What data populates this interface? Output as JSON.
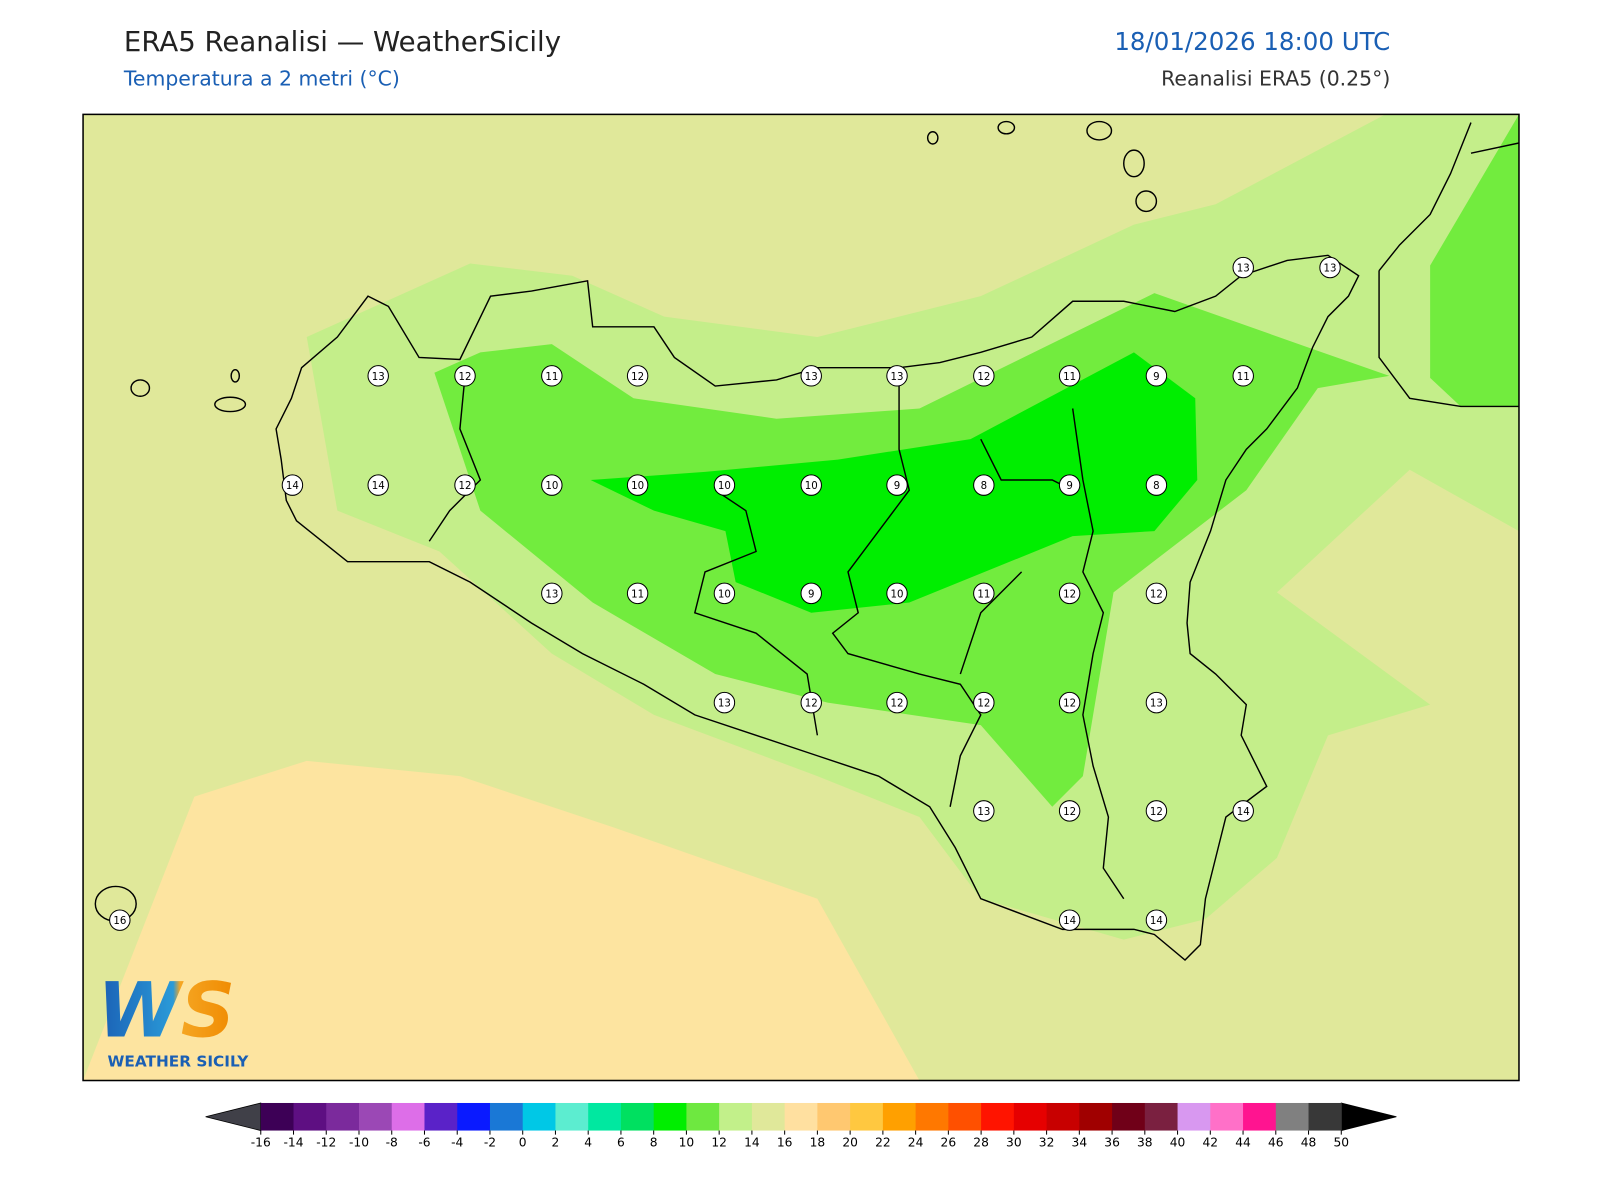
{
  "header": {
    "title": "ERA5 Reanalisi — WeatherSicily",
    "subtitle": "Temperatura a 2 metri (°C)",
    "datetime": "18/01/2026 18:00 UTC",
    "source": "Reanalisi ERA5 (0.25°)"
  },
  "station_values": [
    13,
    13,
    13,
    12,
    11,
    12,
    13,
    13,
    12,
    11,
    9,
    11,
    14,
    14,
    12,
    10,
    10,
    10,
    10,
    9,
    8,
    9,
    8,
    13,
    11,
    10,
    9,
    10,
    11,
    12,
    12,
    13,
    12,
    12,
    12,
    12,
    13,
    13,
    12,
    12,
    14,
    14,
    14,
    16
  ],
  "colorbar": {
    "ticks": [
      -16,
      -14,
      -12,
      -10,
      -8,
      -6,
      -4,
      -2,
      0,
      2,
      4,
      6,
      8,
      10,
      12,
      14,
      16,
      18,
      20,
      22,
      24,
      26,
      28,
      30,
      32,
      34,
      36,
      38,
      40,
      42,
      44,
      46,
      48,
      50
    ],
    "colors": [
      "#3d0056",
      "#5e0f82",
      "#7b2a9c",
      "#9b48b5",
      "#dd6ee8",
      "#5a22c8",
      "#0a1aff",
      "#1a78d6",
      "#00c8e6",
      "#5cedd0",
      "#00e8a0",
      "#00e060",
      "#00ee00",
      "#6ee840",
      "#c2f08a",
      "#e0e89a",
      "#ffe0a0",
      "#ffc870",
      "#ffc840",
      "#ffa000",
      "#ff7800",
      "#ff5000",
      "#ff1400",
      "#e60000",
      "#c80000",
      "#a00000",
      "#700018",
      "#7a2040",
      "#d898f0",
      "#ff70c8",
      "#ff1490",
      "#808080",
      "#383838"
    ],
    "under_color": "#404048",
    "over_color": "#000000"
  },
  "logo": {
    "mark": "WS",
    "text": "WEATHER SICILY"
  }
}
